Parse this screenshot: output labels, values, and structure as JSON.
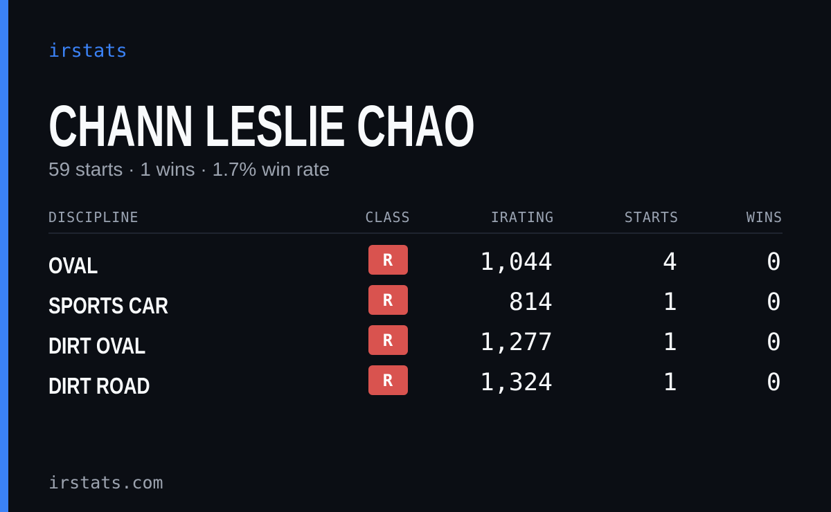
{
  "brand": "irstats",
  "driver": {
    "name": "CHANN LESLIE CHAO",
    "summary": "59 starts · 1 wins · 1.7% win rate"
  },
  "table": {
    "headers": [
      "DISCIPLINE",
      "CLASS",
      "IRATING",
      "STARTS",
      "WINS"
    ],
    "rows": [
      [
        "OVAL",
        "R",
        "1,044",
        "4",
        "0"
      ],
      [
        "SPORTS CAR",
        "R",
        "814",
        "1",
        "0"
      ],
      [
        "DIRT OVAL",
        "R",
        "1,277",
        "1",
        "0"
      ],
      [
        "DIRT ROAD",
        "R",
        "1,324",
        "1",
        "0"
      ]
    ]
  },
  "footer": "irstats.com"
}
